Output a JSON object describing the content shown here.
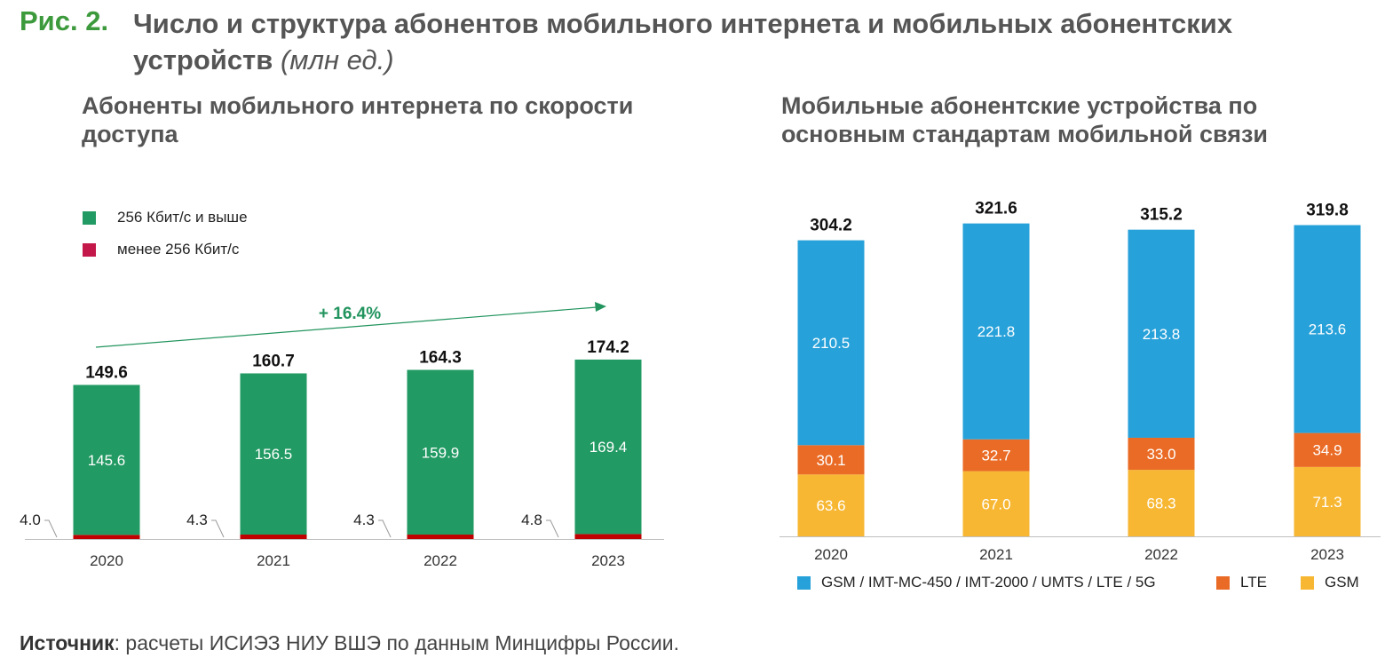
{
  "figure": {
    "label": "Рис. 2.",
    "title": "Число и структура абонентов мобильного интернета и мобильных абонентских устройств",
    "unit": "(млн ед.)"
  },
  "source": {
    "label": "Источник",
    "text": ": расчеты ИСИЭЗ НИУ ВШЭ по данным Минцифры России."
  },
  "colors": {
    "green": "#229a63",
    "crimson": "#c4174a",
    "red_segment": "#c00000",
    "blue": "#27a1d9",
    "orange": "#ea6b25",
    "yellow": "#f7b733",
    "growth_arrow": "#22945e"
  },
  "chart_data": [
    {
      "type": "bar",
      "stacked": true,
      "title": "Абоненты мобильного интернета по скорости доступа",
      "categories": [
        "2020",
        "2021",
        "2022",
        "2023"
      ],
      "series": [
        {
          "name": "менее 256 Кбит/с",
          "values": [
            4.0,
            4.3,
            4.3,
            4.8
          ]
        },
        {
          "name": "256 Кбит/с и выше",
          "values": [
            145.6,
            156.5,
            159.9,
            169.4
          ]
        }
      ],
      "totals": [
        149.6,
        160.7,
        164.3,
        174.2
      ],
      "total_labels": [
        "149.6",
        "160.7",
        "164.3",
        "174.2"
      ],
      "small_labels": [
        "4.0",
        "4.3",
        "4.3",
        "4.8"
      ],
      "main_labels": [
        "145.6",
        "156.5",
        "159.9",
        "169.4"
      ],
      "legend": [
        "256 Кбит/с и выше",
        "менее 256 Кбит/с"
      ],
      "annotation": "+ 16.4%",
      "ylim": [
        0,
        180
      ]
    },
    {
      "type": "bar",
      "stacked": true,
      "title": "Мобильные абонентские устройства по основным стандартам мобильной связи",
      "categories": [
        "2020",
        "2021",
        "2022",
        "2023"
      ],
      "series": [
        {
          "name": "GSM",
          "values": [
            63.6,
            67.0,
            68.3,
            71.3
          ]
        },
        {
          "name": "LTE",
          "values": [
            30.1,
            32.7,
            33.0,
            34.9
          ]
        },
        {
          "name": "GSM / IMT-MC-450 / IMT-2000 / UMTS / LTE / 5G",
          "values": [
            210.5,
            221.8,
            213.8,
            213.6
          ]
        }
      ],
      "totals": [
        304.2,
        321.6,
        315.2,
        319.8
      ],
      "total_labels": [
        "304.2",
        "321.6",
        "315.2",
        "319.8"
      ],
      "segment_labels": [
        [
          "63.6",
          "67.0",
          "68.3",
          "71.3"
        ],
        [
          "30.1",
          "32.7",
          "33.0",
          "34.9"
        ],
        [
          "210.5",
          "221.8",
          "213.8",
          "213.6"
        ]
      ],
      "legend": [
        "GSM / IMT-MC-450 / IMT-2000 / UMTS / LTE / 5G",
        "LTE",
        "GSM"
      ],
      "ylim": [
        0,
        330
      ]
    }
  ]
}
